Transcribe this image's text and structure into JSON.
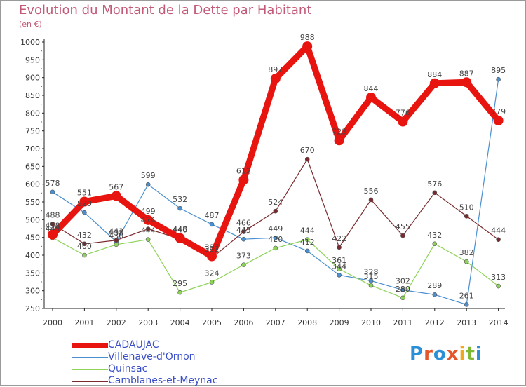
{
  "title": "Evolution du Montant de la Dette par Habitant",
  "unit_label": "(en €)",
  "logo": {
    "text": "Proxiti",
    "colors": [
      "#2a8fd6",
      "#e5552a",
      "#2a8fd6",
      "#e5552a",
      "#f2a81d",
      "#7fb934",
      "#2a8fd6"
    ]
  },
  "chart_data": {
    "type": "line",
    "x": [
      "2000",
      "2001",
      "2002",
      "2003",
      "2004",
      "2005",
      "2006",
      "2007",
      "2008",
      "2009",
      "2010",
      "2011",
      "2012",
      "2013",
      "2014"
    ],
    "ylim": [
      250,
      1000
    ],
    "yticks": [
      250,
      300,
      350,
      400,
      450,
      500,
      550,
      600,
      650,
      700,
      750,
      800,
      850,
      900,
      950,
      1000
    ],
    "grid": false,
    "legend_position": "bottom-left",
    "series": [
      {
        "name": "CADAUJAC",
        "color": "#e8140f",
        "bold": true,
        "values": [
          458,
          551,
          567,
          499,
          448,
          397,
          612,
          897,
          988,
          723,
          844,
          776,
          884,
          887,
          779
        ]
      },
      {
        "name": "Villenave-d'Ornon",
        "color": "#4a8fd0",
        "bold": false,
        "values": [
          578,
          520,
          438,
          599,
          532,
          487,
          445,
          449,
          412,
          344,
          328,
          302,
          289,
          261,
          895
        ]
      },
      {
        "name": "Quinsac",
        "color": "#8ed25a",
        "bold": false,
        "values": [
          449,
          400,
          430,
          444,
          295,
          324,
          373,
          420,
          444,
          361,
          315,
          280,
          432,
          382,
          313
        ]
      },
      {
        "name": "Camblanes-et-Meynac",
        "color": "#7a2a2f",
        "bold": false,
        "values": [
          488,
          432,
          442,
          474,
          446,
          392,
          466,
          524,
          670,
          422,
          556,
          455,
          576,
          510,
          444
        ]
      }
    ]
  }
}
